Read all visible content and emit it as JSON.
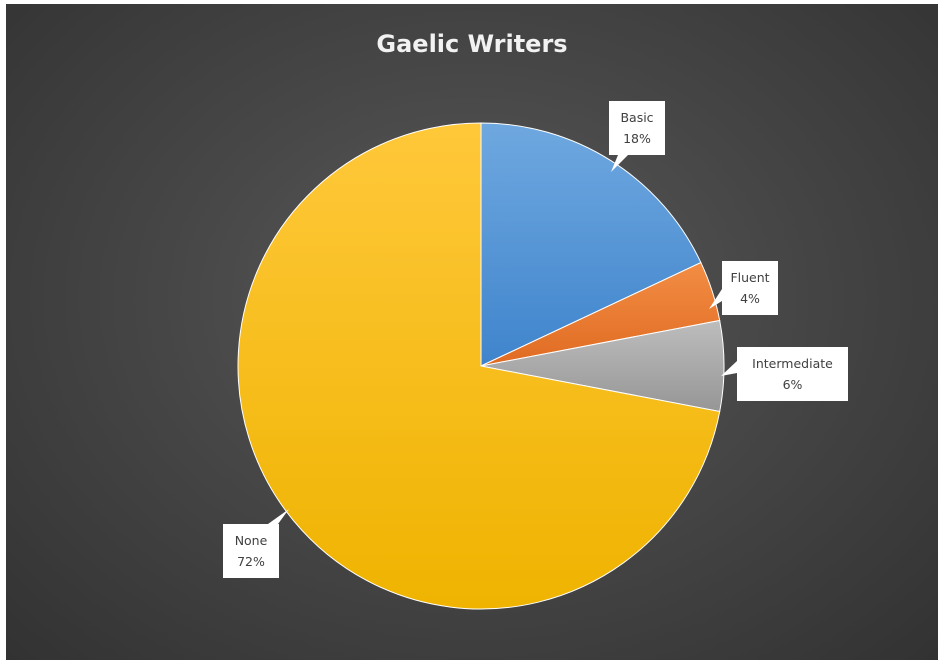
{
  "chart_data": {
    "type": "pie",
    "title": "Gaelic Writers",
    "categories": [
      "Basic",
      "Fluent",
      "Intermediate",
      "None"
    ],
    "values": [
      18,
      4,
      6,
      72
    ],
    "value_labels": [
      "18%",
      "4%",
      "6%",
      "72%"
    ],
    "colors": [
      "#4a90d9",
      "#ed7d31",
      "#a5a5a5",
      "#ffc000"
    ],
    "start_angle": "12 o'clock",
    "direction": "clockwise",
    "legend": "none",
    "data_labels": "callouts"
  },
  "background": "#404040"
}
